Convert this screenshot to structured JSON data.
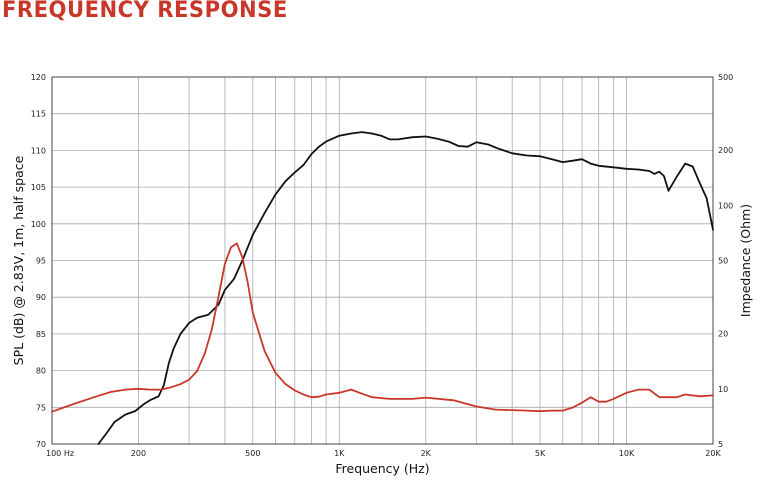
{
  "header": {
    "title": "FREQUENCY RESPONSE"
  },
  "colors": {
    "title": "#c9372a",
    "spl_curve": "#111111",
    "impedance_curve": "#c9372a",
    "grid": "#a9a9a9",
    "frame": "#444444"
  },
  "chart_data": {
    "type": "line",
    "x_scale": "log",
    "grid": true,
    "xlabel": "Frequency (Hz)",
    "ylabel": "SPL (dB) @ 2.83V, 1m, half space",
    "y2label": "Impedance (Ohm)",
    "xlim": [
      100,
      20000
    ],
    "ylim": [
      70,
      120
    ],
    "y2lim": [
      5,
      500
    ],
    "y2_scale": "log",
    "x_ticks": [
      {
        "value": 100,
        "label": "100  Hz"
      },
      {
        "value": 200,
        "label": "200"
      },
      {
        "value": 500,
        "label": "500"
      },
      {
        "value": 1000,
        "label": "1K"
      },
      {
        "value": 2000,
        "label": "2K"
      },
      {
        "value": 5000,
        "label": "5K"
      },
      {
        "value": 10000,
        "label": "10K"
      },
      {
        "value": 20000,
        "label": "20K"
      }
    ],
    "y_ticks": [
      70,
      75,
      80,
      85,
      90,
      95,
      100,
      105,
      110,
      115,
      120
    ],
    "y2_ticks": [
      {
        "value": 5,
        "label": "5"
      },
      {
        "value": 10,
        "label": "10"
      },
      {
        "value": 20,
        "label": "20"
      },
      {
        "value": 50,
        "label": "50"
      },
      {
        "value": 100,
        "label": "100"
      },
      {
        "value": 200,
        "label": "200"
      },
      {
        "value": 500,
        "label": "500"
      }
    ],
    "series": [
      {
        "axis": "left",
        "x": [
          145,
          155,
          165,
          180,
          195,
          210,
          220,
          235,
          245,
          255,
          265,
          280,
          300,
          320,
          350,
          380,
          400,
          430,
          460,
          500,
          550,
          600,
          650,
          700,
          750,
          800,
          850,
          900,
          1000,
          1100,
          1200,
          1300,
          1400,
          1500,
          1600,
          1800,
          2000,
          2200,
          2400,
          2600,
          2800,
          3000,
          3300,
          3600,
          4000,
          4500,
          5000,
          5500,
          6000,
          6500,
          7000,
          7500,
          8000,
          9000,
          10000,
          11000,
          12000,
          12500,
          13000,
          13500,
          14000,
          15000,
          16000,
          17000,
          18000,
          19000,
          20000
        ],
        "values": [
          70,
          71.5,
          73,
          74,
          74.5,
          75.5,
          76,
          76.5,
          78,
          81,
          83,
          85,
          86.5,
          87.2,
          87.6,
          89,
          91,
          92.5,
          95,
          98.5,
          101.5,
          104,
          105.8,
          107,
          108,
          109.5,
          110.5,
          111.2,
          112,
          112.3,
          112.5,
          112.3,
          112.0,
          111.5,
          111.5,
          111.8,
          111.9,
          111.6,
          111.2,
          110.6,
          110.5,
          111.1,
          110.8,
          110.2,
          109.6,
          109.3,
          109.2,
          108.8,
          108.4,
          108.6,
          108.8,
          108.2,
          107.9,
          107.7,
          107.5,
          107.4,
          107.2,
          106.8,
          107.1,
          106.5,
          104.5,
          106.5,
          108.2,
          107.8,
          105.5,
          103.5,
          99.2
        ]
      },
      {
        "axis": "right",
        "x": [
          100,
          120,
          140,
          160,
          180,
          200,
          220,
          240,
          260,
          280,
          300,
          320,
          340,
          360,
          380,
          400,
          420,
          440,
          460,
          480,
          500,
          550,
          600,
          650,
          700,
          750,
          800,
          850,
          900,
          1000,
          1100,
          1200,
          1300,
          1500,
          1800,
          2000,
          2500,
          3000,
          3500,
          4000,
          4500,
          5000,
          5500,
          6000,
          6500,
          7000,
          7500,
          8000,
          8500,
          9000,
          10000,
          11000,
          12000,
          13000,
          14000,
          15000,
          16000,
          18000,
          20000
        ],
        "values": [
          7.5,
          8.3,
          9.0,
          9.6,
          9.9,
          10.0,
          9.9,
          9.9,
          10.2,
          10.6,
          11.2,
          12.5,
          15.5,
          21,
          32,
          48,
          59,
          62,
          52,
          38,
          26,
          16,
          12.2,
          10.6,
          9.8,
          9.3,
          9.0,
          9.05,
          9.3,
          9.5,
          9.9,
          9.4,
          9.0,
          8.8,
          8.8,
          8.95,
          8.65,
          8.0,
          7.7,
          7.65,
          7.6,
          7.55,
          7.6,
          7.6,
          7.9,
          8.4,
          9.0,
          8.5,
          8.5,
          8.8,
          9.5,
          9.9,
          9.9,
          9.0,
          9.0,
          9.0,
          9.3,
          9.1,
          9.2
        ]
      }
    ]
  }
}
